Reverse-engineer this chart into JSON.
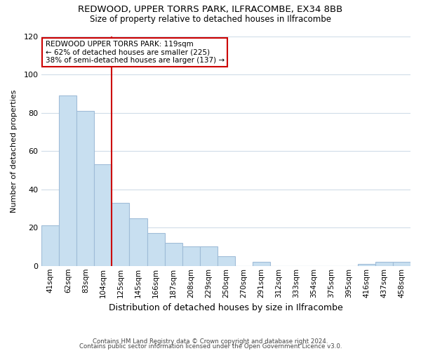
{
  "title1": "REDWOOD, UPPER TORRS PARK, ILFRACOMBE, EX34 8BB",
  "title2": "Size of property relative to detached houses in Ilfracombe",
  "xlabel": "Distribution of detached houses by size in Ilfracombe",
  "ylabel": "Number of detached properties",
  "bar_labels": [
    "41sqm",
    "62sqm",
    "83sqm",
    "104sqm",
    "125sqm",
    "145sqm",
    "166sqm",
    "187sqm",
    "208sqm",
    "229sqm",
    "250sqm",
    "270sqm",
    "291sqm",
    "312sqm",
    "333sqm",
    "354sqm",
    "375sqm",
    "395sqm",
    "416sqm",
    "437sqm",
    "458sqm"
  ],
  "bar_values": [
    21,
    89,
    81,
    53,
    33,
    25,
    17,
    12,
    10,
    10,
    5,
    0,
    2,
    0,
    0,
    0,
    0,
    0,
    1,
    2,
    2
  ],
  "bar_color": "#c8dff0",
  "bar_edge_color": "#a0bcd8",
  "marker_index": 4,
  "ylim": [
    0,
    120
  ],
  "yticks": [
    0,
    20,
    40,
    60,
    80,
    100,
    120
  ],
  "vline_color": "#cc0000",
  "annotation_text_line1": "REDWOOD UPPER TORRS PARK: 119sqm",
  "annotation_text_line2": "← 62% of detached houses are smaller (225)",
  "annotation_text_line3": "38% of semi-detached houses are larger (137) →",
  "annotation_box_color": "#ffffff",
  "annotation_box_edge_color": "#cc0000",
  "footer1": "Contains HM Land Registry data © Crown copyright and database right 2024.",
  "footer2": "Contains public sector information licensed under the Open Government Licence v3.0.",
  "background_color": "#ffffff",
  "grid_color": "#d0dce8"
}
